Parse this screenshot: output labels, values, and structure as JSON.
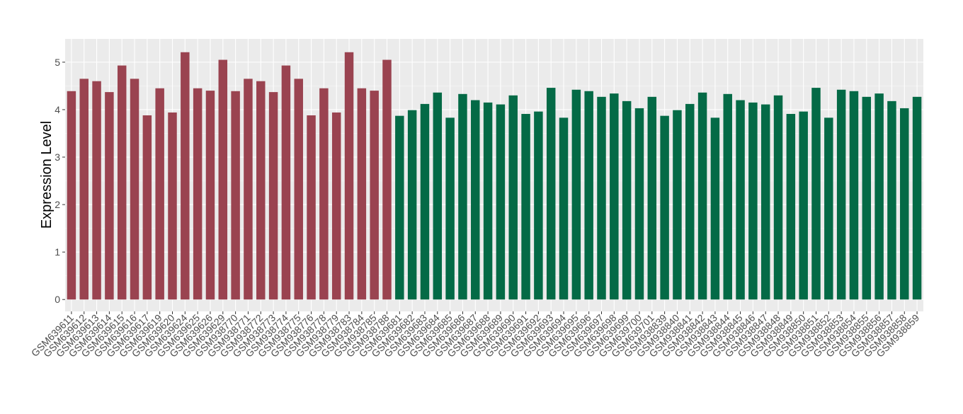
{
  "chart_data": {
    "type": "bar",
    "y_label": "Expression Level",
    "categories": [
      "GSM639611",
      "GSM639612",
      "GSM639613",
      "GSM639614",
      "GSM639615",
      "GSM639616",
      "GSM639617",
      "GSM639619",
      "GSM639620",
      "GSM639624",
      "GSM639625",
      "GSM639626",
      "GSM639629",
      "GSM938770",
      "GSM938771",
      "GSM938772",
      "GSM938773",
      "GSM938774",
      "GSM938775",
      "GSM938776",
      "GSM938778",
      "GSM938779",
      "GSM938783",
      "GSM938784",
      "GSM938785",
      "GSM938788",
      "GSM639681",
      "GSM639682",
      "GSM639683",
      "GSM639684",
      "GSM639685",
      "GSM639686",
      "GSM639687",
      "GSM639688",
      "GSM639689",
      "GSM639690",
      "GSM639691",
      "GSM639692",
      "GSM639693",
      "GSM639694",
      "GSM639695",
      "GSM639696",
      "GSM639697",
      "GSM639698",
      "GSM639699",
      "GSM639700",
      "GSM639701",
      "GSM938839",
      "GSM938840",
      "GSM938841",
      "GSM938842",
      "GSM938843",
      "GSM938844",
      "GSM938845",
      "GSM938846",
      "GSM938847",
      "GSM938848",
      "GSM938849",
      "GSM938850",
      "GSM938851",
      "GSM938852",
      "GSM938853",
      "GSM938854",
      "GSM938855",
      "GSM938856",
      "GSM938857",
      "GSM938858",
      "GSM938859"
    ],
    "series": [
      {
        "color": "#9a4350",
        "values": [
          4.39,
          4.65,
          4.6,
          4.37,
          4.93,
          4.65,
          3.88,
          4.45,
          3.94,
          5.21,
          4.45,
          4.4,
          5.05,
          4.39,
          4.65,
          4.6,
          4.37,
          4.93,
          4.65,
          3.88,
          4.45,
          3.94,
          5.21,
          4.45,
          4.4,
          5.05,
          null,
          null,
          null,
          null,
          null,
          null,
          null,
          null,
          null,
          null,
          null,
          null,
          null,
          null,
          null,
          null,
          null,
          null,
          null,
          null,
          null,
          null,
          null,
          null,
          null,
          null,
          null,
          null,
          null,
          null,
          null,
          null,
          null,
          null,
          null,
          null,
          null,
          null,
          null,
          null,
          null,
          null
        ]
      },
      {
        "color": "#046a46",
        "values": [
          null,
          null,
          null,
          null,
          null,
          null,
          null,
          null,
          null,
          null,
          null,
          null,
          null,
          null,
          null,
          null,
          null,
          null,
          null,
          null,
          null,
          null,
          null,
          null,
          null,
          null,
          3.87,
          3.99,
          4.12,
          4.36,
          3.83,
          4.33,
          4.2,
          4.15,
          4.11,
          4.3,
          3.91,
          3.96,
          4.46,
          3.83,
          4.42,
          4.39,
          4.27,
          4.34,
          4.18,
          4.03,
          4.27,
          3.87,
          3.99,
          4.12,
          4.36,
          3.83,
          4.33,
          4.2,
          4.15,
          4.11,
          4.3,
          3.91,
          3.96,
          4.46,
          3.83,
          4.42,
          4.39,
          4.27,
          4.34,
          4.18,
          4.03,
          4.27
        ]
      }
    ],
    "ylim": [
      -0.25,
      5.49
    ],
    "yticks": [
      0,
      1,
      2,
      3,
      4,
      5
    ],
    "grid": true
  }
}
